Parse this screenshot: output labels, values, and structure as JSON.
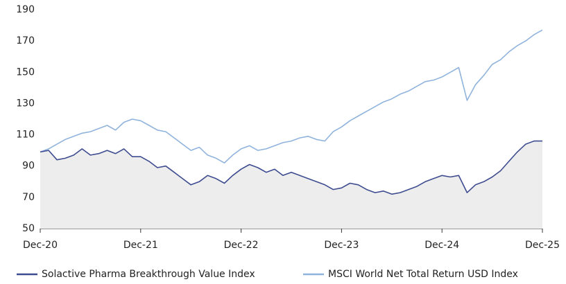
{
  "chart_data": {
    "type": "line",
    "categories": [
      "Dec-20",
      null,
      null,
      null,
      null,
      null,
      null,
      null,
      null,
      null,
      null,
      null,
      "Dec-21",
      null,
      null,
      null,
      null,
      null,
      null,
      null,
      null,
      null,
      null,
      null,
      "Dec-22",
      null,
      null,
      null,
      null,
      null,
      null,
      null,
      null,
      null,
      null,
      null,
      "Dec-23",
      null,
      null,
      null,
      null,
      null,
      null,
      null,
      null,
      null,
      null,
      null,
      "Dec-24",
      null,
      null,
      null,
      null,
      null,
      null,
      null,
      null,
      null,
      null,
      null,
      "Dec-25"
    ],
    "series": [
      {
        "name": "Solactive Pharma Breakthrough Value Index",
        "color": "#3d4b8f",
        "area_color": "#ededed",
        "values": [
          99,
          100,
          94,
          95,
          97,
          101,
          97,
          98,
          100,
          98,
          101,
          96,
          96,
          93,
          89,
          90,
          86,
          82,
          78,
          80,
          84,
          82,
          79,
          84,
          88,
          91,
          89,
          86,
          88,
          84,
          86,
          84,
          82,
          80,
          78,
          75,
          76,
          79,
          78,
          75,
          73,
          74,
          72,
          73,
          75,
          77,
          80,
          82,
          84,
          83,
          84,
          73,
          78,
          80,
          83,
          87,
          93,
          99,
          104,
          106,
          106
        ]
      },
      {
        "name": "MSCI World Net Total Return USD Index",
        "color": "#8fb3dc",
        "values": [
          99,
          101,
          104,
          107,
          109,
          111,
          112,
          114,
          116,
          113,
          118,
          120,
          119,
          116,
          113,
          112,
          108,
          104,
          100,
          102,
          97,
          95,
          92,
          97,
          101,
          103,
          100,
          101,
          103,
          105,
          106,
          108,
          109,
          107,
          106,
          112,
          115,
          119,
          122,
          125,
          128,
          131,
          133,
          136,
          138,
          141,
          144,
          145,
          147,
          150,
          153,
          132,
          142,
          148,
          155,
          158,
          163,
          167,
          170,
          174,
          177
        ]
      }
    ],
    "ylim": [
      50,
      190
    ],
    "yticks": [
      50,
      70,
      90,
      110,
      130,
      150,
      170,
      190
    ],
    "legend": "bottom"
  }
}
